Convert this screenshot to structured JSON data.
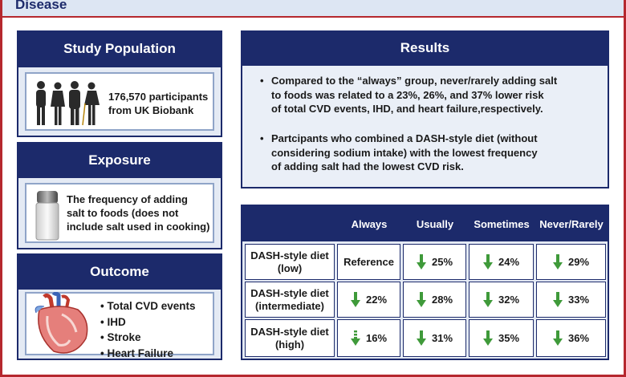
{
  "header": {
    "title": "Disease"
  },
  "study_population": {
    "title": "Study Population",
    "text_line1": "176,570 participants",
    "text_line2": "from UK Biobank",
    "icon": "people-silhouettes-icon"
  },
  "exposure": {
    "title": "Exposure",
    "text_line1": "The frequency of adding",
    "text_line2": "salt to foods (does not",
    "text_line3": "include salt used in cooking)",
    "icon": "salt-shaker-icon"
  },
  "outcome": {
    "title": "Outcome",
    "icon": "heart-icon",
    "items": [
      "Total CVD events",
      "IHD",
      "Stroke",
      "Heart Failure"
    ]
  },
  "results": {
    "title": "Results",
    "bullet1": [
      "Compared to the “always” group, never/rarely adding salt",
      "to foods was related to a 23%, 26%, and 37% lower risk",
      "of total CVD events, IHD, and heart failure,respectively."
    ],
    "bullet2": [
      "Partcipants who combined a DASH-style diet (without",
      "considering sodium intake) with the lowest frequency",
      "of adding salt had the lowest CVD risk."
    ]
  },
  "table": {
    "columns": [
      "Always",
      "Usually",
      "Sometimes",
      "Never/Rarely"
    ],
    "rows": [
      {
        "label_line1": "DASH-style diet",
        "label_line2": "(low)",
        "cells": [
          "Reference",
          "25%",
          "24%",
          "29%"
        ]
      },
      {
        "label_line1": "DASH-style diet",
        "label_line2": "(intermediate)",
        "cells": [
          "22%",
          "28%",
          "32%",
          "33%"
        ]
      },
      {
        "label_line1": "DASH-style diet",
        "label_line2": "(high)",
        "cells": [
          "16%",
          "31%",
          "35%",
          "36%"
        ]
      }
    ],
    "arrow_color": "#3f9a3a"
  },
  "colors": {
    "navy": "#1c2a6b",
    "border_red": "#b5282e",
    "panel_bg": "#dce4f1"
  }
}
